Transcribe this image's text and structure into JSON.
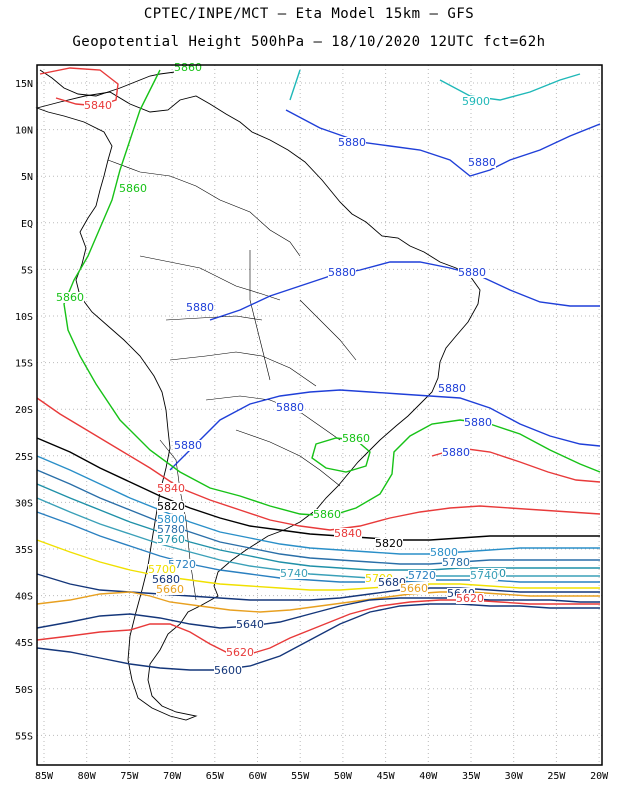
{
  "header": {
    "line1": "CPTEC/INPE/MCT –  Eta Model 15km – GFS",
    "line2": "Geopotential Height 500hPa – 18/10/2020 12UTC fct=62h"
  },
  "axes": {
    "lat_labels": [
      "15N",
      "10N",
      "5N",
      "EQ",
      "5S",
      "10S",
      "15S",
      "20S",
      "25S",
      "30S",
      "35S",
      "40S",
      "45S",
      "50S",
      "55S"
    ],
    "lon_labels": [
      "85W",
      "80W",
      "75W",
      "70W",
      "65W",
      "60W",
      "55W",
      "50W",
      "45W",
      "40W",
      "35W",
      "30W",
      "25W",
      "20W"
    ]
  },
  "contours": {
    "colors": {
      "5900": "#1fb8b8",
      "5880": "#1f3fd8",
      "5860": "#17c217",
      "5840": "#e83a3a",
      "5820": "#000000",
      "5800": "#2a8fc8",
      "5780": "#2a6fa8",
      "5760": "#1f90a8",
      "5740": "#3aa0b8",
      "5720": "#2a80c0",
      "5700": "#f0e000",
      "5680": "#14367a",
      "5660": "#e8a020",
      "5640": "#14367a",
      "5620": "#e83a3a",
      "5600": "#14367a"
    },
    "labels": [
      {
        "text": "5860",
        "series": "5860"
      },
      {
        "text": "5840",
        "series": "5840"
      },
      {
        "text": "5900",
        "series": "5900"
      },
      {
        "text": "5880",
        "series": "5880"
      },
      {
        "text": "5880",
        "series": "5880"
      },
      {
        "text": "5860",
        "series": "5860"
      },
      {
        "text": "5880",
        "series": "5880"
      },
      {
        "text": "5880",
        "series": "5880"
      },
      {
        "text": "5860",
        "series": "5860"
      },
      {
        "text": "5880",
        "series": "5880"
      },
      {
        "text": "5880",
        "series": "5880"
      },
      {
        "text": "5880",
        "series": "5880"
      },
      {
        "text": "5880",
        "series": "5880"
      },
      {
        "text": "5880",
        "series": "5880"
      },
      {
        "text": "5860",
        "series": "5860"
      },
      {
        "text": "5880",
        "series": "5880"
      },
      {
        "text": "5840",
        "series": "5840"
      },
      {
        "text": "5840",
        "series": "5840"
      },
      {
        "text": "5860",
        "series": "5860"
      },
      {
        "text": "5820",
        "series": "5820"
      },
      {
        "text": "5840",
        "series": "5840"
      },
      {
        "text": "5800",
        "series": "5800"
      },
      {
        "text": "5780",
        "series": "5780"
      },
      {
        "text": "5760",
        "series": "5760"
      },
      {
        "text": "5820",
        "series": "5820"
      },
      {
        "text": "5800",
        "series": "5800"
      },
      {
        "text": "5780",
        "series": "5780"
      },
      {
        "text": "5720",
        "series": "5720"
      },
      {
        "text": "5740",
        "series": "5740"
      },
      {
        "text": "5760",
        "series": "5760"
      },
      {
        "text": "5740",
        "series": "5740"
      },
      {
        "text": "5700",
        "series": "5700"
      },
      {
        "text": "5680",
        "series": "5680"
      },
      {
        "text": "5720",
        "series": "5720"
      },
      {
        "text": "5700",
        "series": "5700"
      },
      {
        "text": "5680",
        "series": "5680"
      },
      {
        "text": "5660",
        "series": "5660"
      },
      {
        "text": "5660",
        "series": "5660"
      },
      {
        "text": "5640",
        "series": "5640"
      },
      {
        "text": "5620",
        "series": "5620"
      },
      {
        "text": "5640",
        "series": "5640"
      },
      {
        "text": "5620",
        "series": "5620"
      },
      {
        "text": "5600",
        "series": "5600"
      }
    ]
  }
}
